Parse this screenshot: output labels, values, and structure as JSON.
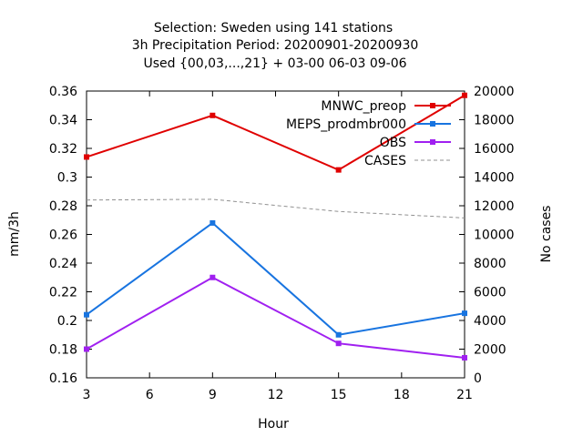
{
  "chart_data": {
    "type": "line",
    "title_lines": [
      "Selection: Sweden using   141 stations",
      "3h Precipitation    Period: 20200901-20200930",
      "Used {00,03,...,21} + 03-00 06-03 09-06"
    ],
    "xlabel": "Hour",
    "ylabel": "mm/3h",
    "y2label": "No cases",
    "x": [
      3,
      9,
      15,
      21
    ],
    "xlim": [
      3,
      21
    ],
    "xticks": [
      "3",
      "6",
      "9",
      "12",
      "15",
      "18",
      "21"
    ],
    "ylim": [
      0.16,
      0.36
    ],
    "yticks": [
      "0.36",
      "0.34",
      "0.32",
      "0.3",
      "0.28",
      "0.26",
      "0.24",
      "0.22",
      "0.2",
      "0.18",
      "0.16"
    ],
    "y2lim": [
      0,
      20000
    ],
    "y2ticks": [
      "20000",
      "18000",
      "16000",
      "14000",
      "12000",
      "10000",
      "8000",
      "6000",
      "4000",
      "2000",
      "0"
    ],
    "grid": false,
    "legend_position": "top-right",
    "series": [
      {
        "name": "MNWC_preop",
        "axis": "y",
        "color": "#e00000",
        "style": "solid",
        "marker": true,
        "values": [
          0.314,
          0.343,
          0.305,
          0.357
        ]
      },
      {
        "name": "MEPS_prodmbr000",
        "axis": "y",
        "color": "#1874e0",
        "style": "solid",
        "marker": true,
        "values": [
          0.204,
          0.268,
          0.19,
          0.205
        ]
      },
      {
        "name": "OBS",
        "axis": "y",
        "color": "#a020f0",
        "style": "solid",
        "marker": true,
        "values": [
          0.18,
          0.23,
          0.184,
          0.174
        ]
      },
      {
        "name": "CASES",
        "axis": "y2",
        "color": "#909090",
        "style": "dashed",
        "marker": false,
        "values": [
          12400,
          12450,
          11600,
          11150
        ]
      }
    ]
  }
}
